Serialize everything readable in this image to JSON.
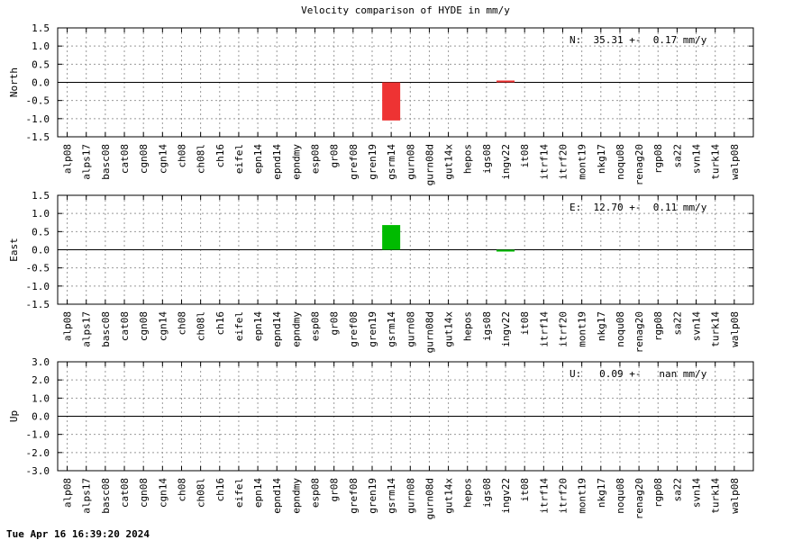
{
  "title": "Velocity comparison of HYDE in mm/y",
  "timestamp": "Tue Apr 16 16:39:20 2024",
  "chart_data": [
    {
      "type": "bar",
      "ylabel": "North",
      "ylim": [
        -1.5,
        1.5
      ],
      "yticks": [
        "1.5",
        "1.0",
        "0.5",
        "0.0",
        "-0.5",
        "-1.0",
        "-1.5"
      ],
      "ytick_values": [
        1.5,
        1.0,
        0.5,
        0.0,
        -0.5,
        -1.0,
        -1.5
      ],
      "grid": true,
      "annotation": "N:  35.31 +-  0.17 mm/y",
      "color": "#ee3333",
      "categories": [
        "alp08",
        "alps17",
        "basc08",
        "cat08",
        "cgn08",
        "cgn14",
        "ch08",
        "ch08l",
        "ch16",
        "eifel",
        "epn14",
        "epnd14",
        "epndmy",
        "esp08",
        "gr08",
        "gref08",
        "gren19",
        "gsrm14",
        "gurn08",
        "gurn08d",
        "gut14x",
        "hepos",
        "igs08",
        "ingv22",
        "it08",
        "itrf14",
        "itrf20",
        "mont19",
        "nkg17",
        "noqu08",
        "renag20",
        "rgp08",
        "sa22",
        "svn14",
        "turk14",
        "walp08"
      ],
      "values": [
        0,
        0,
        0,
        0,
        0,
        0,
        0,
        0,
        0,
        0,
        0,
        0,
        0,
        0,
        0,
        0,
        0,
        -1.05,
        0,
        0,
        0,
        0,
        0,
        0.05,
        0,
        0,
        0,
        0,
        0,
        0,
        0,
        0,
        0,
        0,
        0,
        0
      ]
    },
    {
      "type": "bar",
      "ylabel": "East",
      "ylim": [
        -1.5,
        1.5
      ],
      "yticks": [
        "1.5",
        "1.0",
        "0.5",
        "0.0",
        "-0.5",
        "-1.0",
        "-1.5"
      ],
      "ytick_values": [
        1.5,
        1.0,
        0.5,
        0.0,
        -0.5,
        -1.0,
        -1.5
      ],
      "grid": true,
      "annotation": "E:  12.70 +-  0.11 mm/y",
      "color": "#00bb00",
      "categories": [
        "alp08",
        "alps17",
        "basc08",
        "cat08",
        "cgn08",
        "cgn14",
        "ch08",
        "ch08l",
        "ch16",
        "eifel",
        "epn14",
        "epnd14",
        "epndmy",
        "esp08",
        "gr08",
        "gref08",
        "gren19",
        "gsrm14",
        "gurn08",
        "gurn08d",
        "gut14x",
        "hepos",
        "igs08",
        "ingv22",
        "it08",
        "itrf14",
        "itrf20",
        "mont19",
        "nkg17",
        "noqu08",
        "renag20",
        "rgp08",
        "sa22",
        "svn14",
        "turk14",
        "walp08"
      ],
      "values": [
        0,
        0,
        0,
        0,
        0,
        0,
        0,
        0,
        0,
        0,
        0,
        0,
        0,
        0,
        0,
        0,
        0,
        0.68,
        0,
        0,
        0,
        0,
        0,
        -0.05,
        0,
        0,
        0,
        0,
        0,
        0,
        0,
        0,
        0,
        0,
        0,
        0
      ]
    },
    {
      "type": "bar",
      "ylabel": "Up",
      "ylim": [
        -3.0,
        3.0
      ],
      "yticks": [
        "3.0",
        "2.0",
        "1.0",
        "0.0",
        "-1.0",
        "-2.0",
        "-3.0"
      ],
      "ytick_values": [
        3.0,
        2.0,
        1.0,
        0.0,
        -1.0,
        -2.0,
        -3.0
      ],
      "grid": true,
      "annotation": "U:   0.09 +-   nan mm/y",
      "color": "#3333ee",
      "categories": [
        "alp08",
        "alps17",
        "basc08",
        "cat08",
        "cgn08",
        "cgn14",
        "ch08",
        "ch08l",
        "ch16",
        "eifel",
        "epn14",
        "epnd14",
        "epndmy",
        "esp08",
        "gr08",
        "gref08",
        "gren19",
        "gsrm14",
        "gurn08",
        "gurn08d",
        "gut14x",
        "hepos",
        "igs08",
        "ingv22",
        "it08",
        "itrf14",
        "itrf20",
        "mont19",
        "nkg17",
        "noqu08",
        "renag20",
        "rgp08",
        "sa22",
        "svn14",
        "turk14",
        "walp08"
      ],
      "values": [
        0,
        0,
        0,
        0,
        0,
        0,
        0,
        0,
        0,
        0,
        0,
        0,
        0,
        0,
        0,
        0,
        0,
        0,
        0,
        0,
        0,
        0,
        0,
        0,
        0,
        0,
        0,
        0,
        0,
        0,
        0,
        0,
        0,
        0,
        0,
        0
      ]
    }
  ]
}
